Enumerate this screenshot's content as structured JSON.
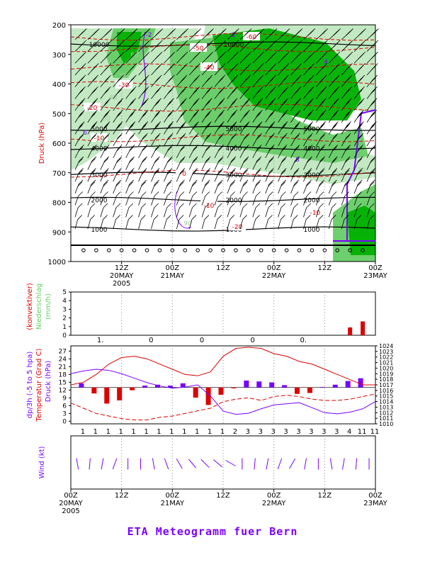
{
  "title": "ETA Meteogramm fuer Bern",
  "colors": {
    "green_dark": "#00b000",
    "green_mid": "#66cc66",
    "green_light": "#bfe8bf",
    "temp_red": "#dd0000",
    "purple": "#7a00ff",
    "barb": "#000000"
  },
  "time_axis": {
    "ticks": [
      {
        "label": "12Z",
        "date": "20MAY",
        "year": "2005"
      },
      {
        "label": "00Z",
        "date": "21MAY",
        "year": ""
      },
      {
        "label": "12Z",
        "date": "",
        "year": ""
      },
      {
        "label": "00Z",
        "date": "22MAY",
        "year": ""
      },
      {
        "label": "12Z",
        "date": "",
        "year": ""
      },
      {
        "label": "00Z",
        "date": "23MAY",
        "year": ""
      }
    ],
    "bottom_ticks": [
      {
        "label": "00Z",
        "date": "20MAY",
        "year": "2005"
      },
      {
        "label": "12Z",
        "date": "",
        "year": ""
      },
      {
        "label": "00Z",
        "date": "21MAY",
        "year": ""
      },
      {
        "label": "12Z",
        "date": "",
        "year": ""
      },
      {
        "label": "00Z",
        "date": "22MAY",
        "year": ""
      },
      {
        "label": "12Z",
        "date": "",
        "year": ""
      },
      {
        "label": "00Z",
        "date": "23MAY",
        "year": ""
      }
    ]
  },
  "chart_data": [
    {
      "type": "heatmap",
      "panel": "cross-section",
      "ylabel": "Druck (hPa)",
      "y_ticks": [
        200,
        300,
        400,
        500,
        600,
        700,
        800,
        900,
        1000
      ],
      "ylim": [
        1000,
        200
      ],
      "xlim_hours": [
        0,
        72
      ],
      "height_lines": [
        {
          "label": "10000",
          "p": 265
        },
        {
          "label": "5000",
          "p": 550
        },
        {
          "label": "4000",
          "p": 615
        },
        {
          "label": "3000",
          "p": 705
        },
        {
          "label": "2000",
          "p": 790
        },
        {
          "label": "1000",
          "p": 890
        }
      ],
      "temperature_labels": [
        "-60",
        "-50",
        "-40",
        "-30",
        "-20",
        "-10",
        "0",
        "-10",
        "-20",
        "-10"
      ],
      "other_labels": [
        "-2",
        "2",
        "4",
        "6",
        "8",
        "90",
        "80",
        "70",
        "60",
        "50",
        "40",
        "30",
        "10"
      ]
    },
    {
      "type": "bar",
      "panel": "precipitation",
      "ylabel_lines": [
        "(konvektiver)",
        "Niederschlag",
        "(mm/h)"
      ],
      "y_ticks": [
        0,
        1,
        2,
        3,
        4,
        5
      ],
      "ylim": [
        0,
        5
      ],
      "x_hours": [
        3,
        9,
        15,
        21,
        27,
        33,
        39,
        45,
        51,
        57,
        63,
        66,
        69
      ],
      "values": [
        0,
        0,
        0,
        0,
        0,
        0,
        0,
        0,
        0,
        0,
        0,
        0.9,
        1.6
      ],
      "accum_labels": [
        {
          "h": 12,
          "label": "1."
        },
        {
          "h": 24,
          "label": "0"
        },
        {
          "h": 36,
          "label": "0"
        },
        {
          "h": 48,
          "label": "0"
        },
        {
          "h": 60,
          "label": "0."
        }
      ]
    },
    {
      "type": "line",
      "panel": "surface",
      "ylabel_left": [
        "dp/3h (-5 to 5 hpa)",
        "Temperatur (Grad C)"
      ],
      "ylabel_right": "Druck (hPa)",
      "left_ticks": [
        0,
        3,
        6,
        9,
        12,
        15,
        18,
        21,
        24,
        27
      ],
      "left_lim": [
        -1,
        29
      ],
      "right_ticks": [
        1010,
        1011,
        1012,
        1013,
        1014,
        1015,
        1016,
        1017,
        1018,
        1019,
        1020,
        1021,
        1022,
        1023,
        1024
      ],
      "right_lim": [
        1010,
        1024
      ],
      "x_hours": [
        0,
        3,
        6,
        9,
        12,
        15,
        18,
        21,
        24,
        27,
        30,
        33,
        36,
        39,
        42,
        45,
        48,
        51,
        54,
        57,
        60,
        63,
        66,
        69,
        72
      ],
      "series": [
        {
          "name": "Temperatur",
          "values": [
            14,
            15,
            18,
            22,
            24.5,
            25,
            24,
            22,
            20,
            18,
            17.5,
            19,
            25,
            28,
            28.5,
            28,
            26,
            25,
            23,
            22,
            20,
            18,
            16,
            14,
            14
          ]
        },
        {
          "name": "Taupunkt",
          "values": [
            7,
            5,
            3,
            2,
            1,
            0.5,
            0.5,
            1.5,
            2,
            3,
            4,
            5,
            7.5,
            8.5,
            9,
            8,
            9.5,
            10,
            9.5,
            8.5,
            8,
            8,
            8.5,
            9.5,
            10.5
          ]
        },
        {
          "name": "Druck",
          "values": [
            1019,
            1019.5,
            1019.8,
            1019.6,
            1019,
            1018.2,
            1017.4,
            1016.8,
            1016.4,
            1016.6,
            1017,
            1015,
            1012.3,
            1011.7,
            1011.9,
            1012.7,
            1013.4,
            1013.6,
            1013.8,
            1012.9,
            1012,
            1011.8,
            1012.1,
            1012.7,
            1014
          ]
        }
      ],
      "tendency_hours": [
        2.5,
        5.5,
        8.5,
        11.5,
        14.5,
        17.5,
        20.5,
        23.5,
        26.5,
        29.5,
        32.5,
        35.5,
        38.5,
        41.5,
        44.5,
        47.5,
        50.5,
        53.5,
        56.5,
        59.5,
        62.5,
        65.5,
        68.5
      ],
      "tendency": [
        0.9,
        -1.3,
        -3.5,
        -2.8,
        -0.6,
        0.4,
        0.6,
        0.4,
        0.9,
        -2.2,
        -3.8,
        -1.6,
        -0.2,
        1.5,
        1.3,
        1.1,
        0.5,
        -1.4,
        -1.2,
        0.1,
        0.6,
        1.4,
        2.0
      ],
      "cloud_codes": [
        "1",
        "1",
        "1",
        "1",
        "1",
        "1",
        "1",
        "1",
        "1",
        "1",
        "1",
        "1",
        "2",
        "3",
        "3",
        "3",
        "3",
        "3",
        "3",
        "3",
        "3",
        "4",
        "11",
        "11"
      ]
    },
    {
      "type": "line",
      "panel": "wind",
      "ylabel": "Wind (kt)"
    }
  ]
}
